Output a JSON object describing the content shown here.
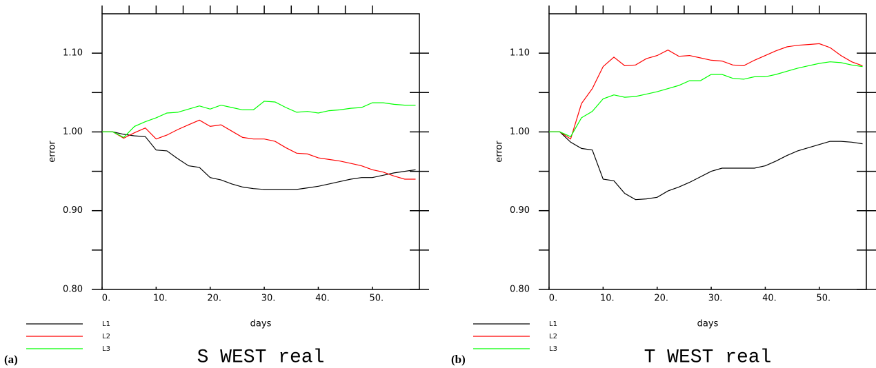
{
  "chart_data": [
    {
      "type": "line",
      "title": "S WEST real",
      "panel_label": "(a)",
      "xlabel": "days",
      "ylabel": "error",
      "x": [
        0,
        2,
        4,
        6,
        8,
        10,
        12,
        14,
        16,
        18,
        20,
        22,
        24,
        26,
        28,
        30,
        32,
        34,
        36,
        38,
        40,
        42,
        44,
        46,
        48,
        50,
        52,
        54,
        56,
        58
      ],
      "series": [
        {
          "name": "L1",
          "color": "#000000",
          "values": [
            1.0,
            1.0,
            0.997,
            0.995,
            0.994,
            0.977,
            0.976,
            0.966,
            0.957,
            0.955,
            0.942,
            0.939,
            0.934,
            0.93,
            0.928,
            0.927,
            0.927,
            0.927,
            0.927,
            0.929,
            0.931,
            0.934,
            0.937,
            0.94,
            0.942,
            0.942,
            0.945,
            0.948,
            0.95,
            0.952
          ]
        },
        {
          "name": "L2",
          "color": "#ff0000",
          "values": [
            1.0,
            1.0,
            0.992,
            0.999,
            1.005,
            0.991,
            0.996,
            1.003,
            1.009,
            1.015,
            1.007,
            1.009,
            1.001,
            0.993,
            0.991,
            0.991,
            0.988,
            0.98,
            0.973,
            0.972,
            0.967,
            0.965,
            0.963,
            0.96,
            0.957,
            0.952,
            0.949,
            0.944,
            0.94,
            0.94
          ]
        },
        {
          "name": "L3",
          "color": "#00ff00",
          "values": [
            1.0,
            1.0,
            0.993,
            1.007,
            1.013,
            1.018,
            1.024,
            1.025,
            1.029,
            1.033,
            1.029,
            1.034,
            1.031,
            1.028,
            1.028,
            1.039,
            1.038,
            1.031,
            1.025,
            1.026,
            1.024,
            1.027,
            1.028,
            1.03,
            1.031,
            1.037,
            1.037,
            1.035,
            1.034,
            1.034
          ]
        }
      ],
      "xlim": [
        0,
        58.7
      ],
      "ylim": [
        0.8,
        1.15
      ],
      "xticks": [
        {
          "value": 0,
          "label": "0."
        },
        {
          "value": 10,
          "label": "10."
        },
        {
          "value": 20,
          "label": "20."
        },
        {
          "value": 30,
          "label": "30."
        },
        {
          "value": 40,
          "label": "40."
        },
        {
          "value": 50,
          "label": "50."
        }
      ],
      "yticks": [
        {
          "value": 0.8,
          "label": "0.80"
        },
        {
          "value": 0.9,
          "label": "0.90"
        },
        {
          "value": 1.0,
          "label": "1.00"
        },
        {
          "value": 1.1,
          "label": "1.10"
        }
      ]
    },
    {
      "type": "line",
      "title": "T WEST real",
      "panel_label": "(b)",
      "xlabel": "days",
      "ylabel": "error",
      "x": [
        0,
        2,
        4,
        6,
        8,
        10,
        12,
        14,
        16,
        18,
        20,
        22,
        24,
        26,
        28,
        30,
        32,
        34,
        36,
        38,
        40,
        42,
        44,
        46,
        48,
        50,
        52,
        54,
        56,
        58
      ],
      "series": [
        {
          "name": "L1",
          "color": "#000000",
          "values": [
            1.0,
            1.0,
            0.987,
            0.979,
            0.977,
            0.94,
            0.938,
            0.922,
            0.914,
            0.915,
            0.917,
            0.925,
            0.93,
            0.936,
            0.943,
            0.95,
            0.954,
            0.954,
            0.954,
            0.954,
            0.957,
            0.963,
            0.97,
            0.976,
            0.98,
            0.984,
            0.988,
            0.988,
            0.987,
            0.985
          ]
        },
        {
          "name": "L2",
          "color": "#ff0000",
          "values": [
            1.0,
            1.0,
            0.991,
            1.036,
            1.055,
            1.083,
            1.095,
            1.084,
            1.085,
            1.093,
            1.097,
            1.104,
            1.096,
            1.097,
            1.094,
            1.091,
            1.09,
            1.085,
            1.084,
            1.091,
            1.097,
            1.103,
            1.108,
            1.11,
            1.111,
            1.112,
            1.107,
            1.097,
            1.089,
            1.084
          ]
        },
        {
          "name": "L3",
          "color": "#00ff00",
          "values": [
            1.0,
            1.0,
            0.994,
            1.018,
            1.026,
            1.042,
            1.047,
            1.044,
            1.045,
            1.048,
            1.051,
            1.055,
            1.059,
            1.065,
            1.065,
            1.073,
            1.073,
            1.068,
            1.067,
            1.07,
            1.07,
            1.073,
            1.077,
            1.081,
            1.084,
            1.087,
            1.089,
            1.088,
            1.085,
            1.083
          ]
        }
      ],
      "xlim": [
        0,
        58.7
      ],
      "ylim": [
        0.8,
        1.15
      ],
      "xticks": [
        {
          "value": 0,
          "label": "0."
        },
        {
          "value": 10,
          "label": "10."
        },
        {
          "value": 20,
          "label": "20."
        },
        {
          "value": 30,
          "label": "30."
        },
        {
          "value": 40,
          "label": "40."
        },
        {
          "value": 50,
          "label": "50."
        }
      ],
      "yticks": [
        {
          "value": 0.8,
          "label": "0.80"
        },
        {
          "value": 0.9,
          "label": "0.90"
        },
        {
          "value": 1.0,
          "label": "1.00"
        },
        {
          "value": 1.1,
          "label": "1.10"
        }
      ]
    }
  ]
}
